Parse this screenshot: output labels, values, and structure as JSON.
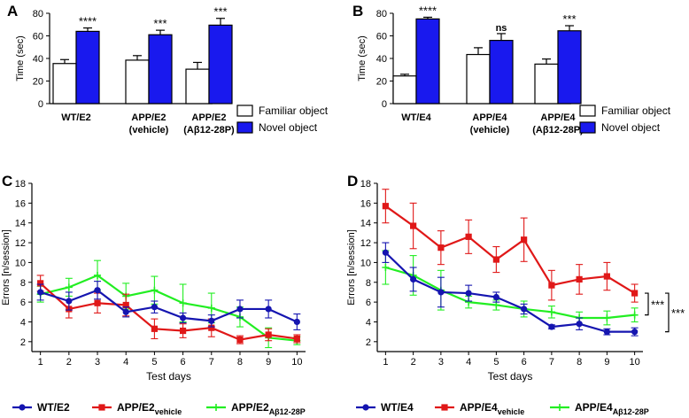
{
  "chart_data": [
    {
      "panel": "A",
      "type": "bar",
      "ylabel": "Time (sec)",
      "ylim": [
        0,
        80
      ],
      "yticks": [
        0,
        20,
        40,
        60,
        80
      ],
      "categories": [
        [
          "WT/E2"
        ],
        [
          "APP/E2",
          "(vehicle)"
        ],
        [
          "APP/E2",
          "(Aβ12-28P)"
        ]
      ],
      "series": [
        {
          "name": "Familiar object",
          "color": "#ffffff",
          "values": [
            35.5,
            38.5,
            30.5
          ],
          "errors": [
            3.5,
            4.0,
            6.0
          ]
        },
        {
          "name": "Novel object",
          "color": "#1919ee",
          "values": [
            64.0,
            61.0,
            69.5
          ],
          "errors": [
            3.0,
            4.0,
            6.0
          ]
        }
      ],
      "significance": [
        "****",
        "***",
        "***"
      ],
      "legend": "bottom-right"
    },
    {
      "panel": "B",
      "type": "bar",
      "ylabel": "Time (sec)",
      "ylim": [
        0,
        80
      ],
      "yticks": [
        0,
        20,
        40,
        60,
        80
      ],
      "categories": [
        [
          "WT/E4"
        ],
        [
          "APP/E4",
          "(vehicle)"
        ],
        [
          "APP/E4",
          "(Aβ12-28P)"
        ]
      ],
      "series": [
        {
          "name": "Familiar object",
          "color": "#ffffff",
          "values": [
            24.5,
            43.5,
            35.0
          ],
          "errors": [
            1.5,
            6.0,
            4.5
          ]
        },
        {
          "name": "Novel object",
          "color": "#1919ee",
          "values": [
            75.0,
            56.0,
            64.5
          ],
          "errors": [
            1.5,
            6.0,
            4.5
          ]
        }
      ],
      "significance": [
        "****",
        "ns",
        "***"
      ],
      "legend": "bottom-right"
    },
    {
      "panel": "C",
      "type": "line",
      "xlabel": "Test days",
      "ylabel": "Errors  [n/session]",
      "x": [
        1,
        2,
        3,
        4,
        5,
        6,
        7,
        8,
        9,
        10
      ],
      "xlim": [
        0.7,
        10.3
      ],
      "ylim": [
        1,
        18
      ],
      "yticks": [
        2,
        4,
        6,
        8,
        10,
        12,
        14,
        16,
        18
      ],
      "series": [
        {
          "name": "WT/E2",
          "sub": "",
          "color": "#1515b0",
          "values": [
            7.0,
            6.1,
            7.2,
            5.0,
            5.5,
            4.4,
            4.1,
            5.3,
            5.3,
            4.0
          ],
          "errors": [
            0.8,
            0.9,
            0.9,
            0.5,
            0.6,
            0.5,
            0.6,
            0.9,
            0.9,
            0.8
          ]
        },
        {
          "name": "APP/E2",
          "sub": "vehicle",
          "color": "#e01818",
          "values": [
            7.9,
            5.3,
            5.9,
            5.7,
            3.3,
            3.1,
            3.4,
            2.2,
            2.7,
            2.3
          ],
          "errors": [
            0.8,
            0.9,
            1.0,
            1.1,
            1.0,
            0.7,
            0.9,
            0.4,
            0.6,
            0.4
          ]
        },
        {
          "name": "APP/E2",
          "sub": "Aβ12-28P",
          "color": "#22ee22",
          "values": [
            6.8,
            7.5,
            8.7,
            6.6,
            7.2,
            5.9,
            5.4,
            4.5,
            2.4,
            2.1
          ],
          "errors": [
            0.8,
            0.9,
            1.5,
            1.3,
            1.4,
            1.9,
            1.5,
            1.0,
            1.0,
            0.4
          ]
        }
      ],
      "legend": "bottom"
    },
    {
      "panel": "D",
      "type": "line",
      "xlabel": "Test days",
      "ylabel": "Errors [n/session]",
      "x": [
        1,
        2,
        3,
        4,
        5,
        6,
        7,
        8,
        9,
        10
      ],
      "xlim": [
        0.7,
        10.3
      ],
      "ylim": [
        1,
        18
      ],
      "yticks": [
        2,
        4,
        6,
        8,
        10,
        12,
        14,
        16,
        18
      ],
      "series": [
        {
          "name": "WT/E4",
          "sub": "",
          "color": "#1515b0",
          "values": [
            11.0,
            8.3,
            7.0,
            6.9,
            6.5,
            5.3,
            3.5,
            3.8,
            3.0,
            3.0
          ],
          "errors": [
            1.0,
            1.2,
            1.5,
            0.8,
            0.5,
            0.5,
            0.2,
            0.6,
            0.3,
            0.4
          ]
        },
        {
          "name": "APP/E4",
          "sub": "vehicle",
          "color": "#e01818",
          "values": [
            15.7,
            13.7,
            11.5,
            12.6,
            10.3,
            12.3,
            7.7,
            8.3,
            8.6,
            6.9
          ],
          "errors": [
            1.7,
            2.3,
            1.7,
            1.7,
            1.3,
            2.2,
            1.5,
            1.5,
            1.4,
            0.9
          ]
        },
        {
          "name": "APP/E4",
          "sub": "Aβ12-28P",
          "color": "#22ee22",
          "values": [
            9.5,
            8.7,
            7.2,
            6.0,
            5.7,
            5.3,
            5.0,
            4.4,
            4.4,
            4.7
          ],
          "errors": [
            1.7,
            2.0,
            2.0,
            0.6,
            0.5,
            0.8,
            0.6,
            0.6,
            0.7,
            0.7
          ]
        }
      ],
      "brackets": [
        "***",
        "***"
      ],
      "legend": "bottom"
    }
  ]
}
